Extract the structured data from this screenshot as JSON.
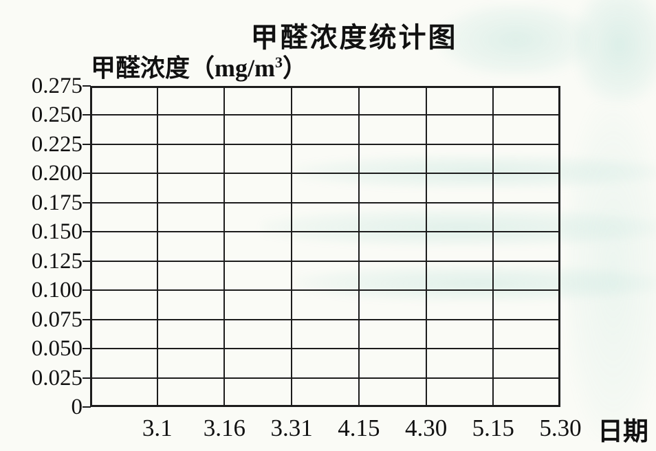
{
  "colors": {
    "background": "#fafbf6",
    "grid_line": "#1c1c1c",
    "text": "#111111",
    "bleed_artifact": "#7ec7bc"
  },
  "chart_data": {
    "type": "line",
    "title": "甲醛浓度统计图",
    "ylabel": {
      "text": "甲醛浓度（mg/m³）",
      "prefix": "甲醛浓度（mg/m",
      "sup": "3",
      "suffix": "）"
    },
    "xlabel": "日期",
    "categories": [
      "3.1",
      "3.16",
      "3.31",
      "4.15",
      "4.30",
      "5.15",
      "5.30"
    ],
    "y_tick_labels_top_down": [
      "0.275",
      "0.250",
      "0.225",
      "0.200",
      "0.175",
      "0.150",
      "0.125",
      "0.100",
      "0.075",
      "0.050",
      "0.025",
      "0"
    ],
    "ylim": [
      0,
      0.275
    ],
    "y_step": 0.025,
    "series": [],
    "grid": true,
    "legend": "none"
  }
}
